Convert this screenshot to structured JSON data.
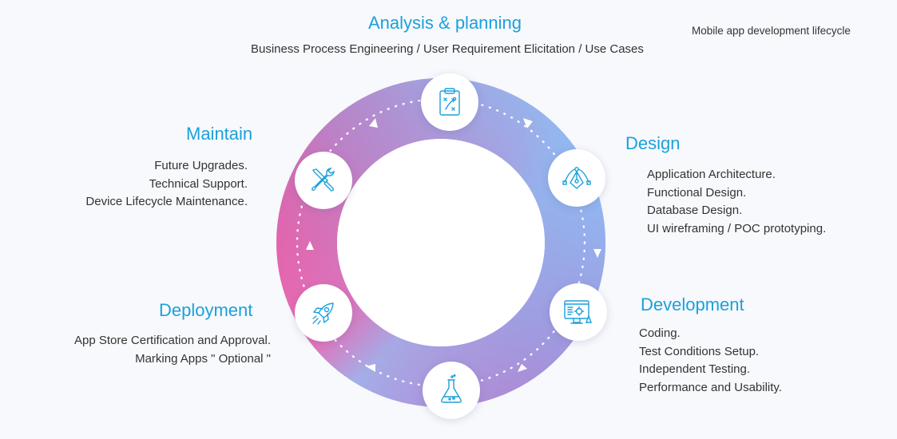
{
  "caption": "Mobile app development lifecycle",
  "stages": {
    "analysis": {
      "title": "Analysis & planning",
      "items": [
        "Business Process Engineering / User Requirement Elicitation / Use Cases"
      ],
      "icon": "clipboard-strategy-icon"
    },
    "design": {
      "title": "Design",
      "items": [
        "Application Architecture.",
        "Functional Design.",
        "Database Design.",
        "UI wireframing / POC prototyping."
      ],
      "icon": "pen-tool-icon"
    },
    "development": {
      "title": "Development",
      "items": [
        "Coding.",
        "Test Conditions Setup.",
        "Independent Testing.",
        "Performance and Usability."
      ],
      "icon": "monitor-gear-icon"
    },
    "testing": {
      "icon": "flask-icon"
    },
    "deployment": {
      "title": "Deployment",
      "items": [
        "App Store Certification and Approval.",
        "Marking Apps  \" Optional \""
      ],
      "icon": "rocket-icon"
    },
    "maintain": {
      "title": "Maintain",
      "items": [
        "Future Upgrades.",
        "Technical Support.",
        "Device Lifecycle Maintenance."
      ],
      "icon": "wrench-screwdriver-icon"
    }
  },
  "colors": {
    "heading": "#1ba0dc",
    "ring_pink": "#ef5aa0",
    "ring_blue": "#8fbdf5",
    "ring_purple": "#b08ad8",
    "icon_stroke": "#1ba0dc"
  }
}
